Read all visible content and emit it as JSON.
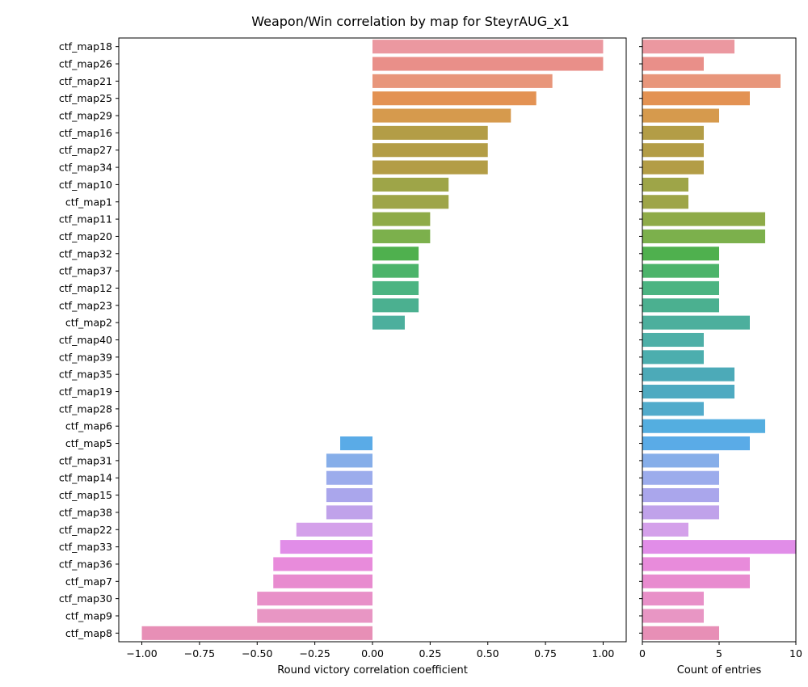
{
  "chart_data": {
    "title": "Weapon/Win correlation by map for SteyrAUG_x1",
    "type": "bar",
    "orientation": "horizontal",
    "categories": [
      "ctf_map18",
      "ctf_map26",
      "ctf_map21",
      "ctf_map25",
      "ctf_map29",
      "ctf_map16",
      "ctf_map27",
      "ctf_map34",
      "ctf_map10",
      "ctf_map1",
      "ctf_map11",
      "ctf_map20",
      "ctf_map32",
      "ctf_map37",
      "ctf_map12",
      "ctf_map23",
      "ctf_map2",
      "ctf_map40",
      "ctf_map39",
      "ctf_map35",
      "ctf_map19",
      "ctf_map28",
      "ctf_map6",
      "ctf_map5",
      "ctf_map31",
      "ctf_map14",
      "ctf_map15",
      "ctf_map38",
      "ctf_map22",
      "ctf_map33",
      "ctf_map36",
      "ctf_map7",
      "ctf_map30",
      "ctf_map9",
      "ctf_map8"
    ],
    "colors": [
      "#eb98a0",
      "#e98f89",
      "#e8967b",
      "#e39253",
      "#d69a4d",
      "#b39d46",
      "#b39d46",
      "#b39d46",
      "#9ea548",
      "#9ea548",
      "#8eab48",
      "#7cb04c",
      "#4fb04e",
      "#4cb46a",
      "#4cb482",
      "#4bb090",
      "#4caf9d",
      "#4eafa7",
      "#4caeae",
      "#4caab8",
      "#4eaac1",
      "#52abcb",
      "#54aee0",
      "#5aabe7",
      "#86aee9",
      "#9cacec",
      "#aaa6ec",
      "#c0a2ea",
      "#d4a0ea",
      "#e18de8",
      "#e88bdb",
      "#e88bcf",
      "#e890c8",
      "#e896c4",
      "#e78fb6"
    ],
    "panels": [
      {
        "id": "correlation",
        "xlabel": "Round victory correlation coefficient",
        "xlim": [
          -1.1,
          1.1
        ],
        "xticks": [
          -1.0,
          -0.75,
          -0.5,
          -0.25,
          0.0,
          0.25,
          0.5,
          0.75,
          1.0
        ],
        "xtick_labels": [
          "−1.00",
          "−0.75",
          "−0.50",
          "−0.25",
          "0.00",
          "0.25",
          "0.50",
          "0.75",
          "1.00"
        ],
        "values": [
          1.0,
          1.0,
          0.78,
          0.71,
          0.6,
          0.5,
          0.5,
          0.5,
          0.33,
          0.33,
          0.25,
          0.25,
          0.2,
          0.2,
          0.2,
          0.2,
          0.14,
          0,
          0,
          0,
          0,
          0,
          0,
          -0.14,
          -0.2,
          -0.2,
          -0.2,
          -0.2,
          -0.33,
          -0.4,
          -0.43,
          -0.43,
          -0.5,
          -0.5,
          -1.0
        ]
      },
      {
        "id": "count",
        "xlabel": "Count of entries",
        "xlim": [
          0,
          10
        ],
        "xticks": [
          0,
          5,
          10
        ],
        "xtick_labels": [
          "0",
          "5",
          "10"
        ],
        "values": [
          6,
          4,
          9,
          7,
          5,
          4,
          4,
          4,
          3,
          3,
          8,
          8,
          5,
          5,
          5,
          5,
          7,
          4,
          4,
          6,
          6,
          4,
          8,
          7,
          5,
          5,
          5,
          5,
          3,
          10,
          7,
          7,
          4,
          4,
          5
        ]
      }
    ],
    "grid": false,
    "legend": "none"
  }
}
